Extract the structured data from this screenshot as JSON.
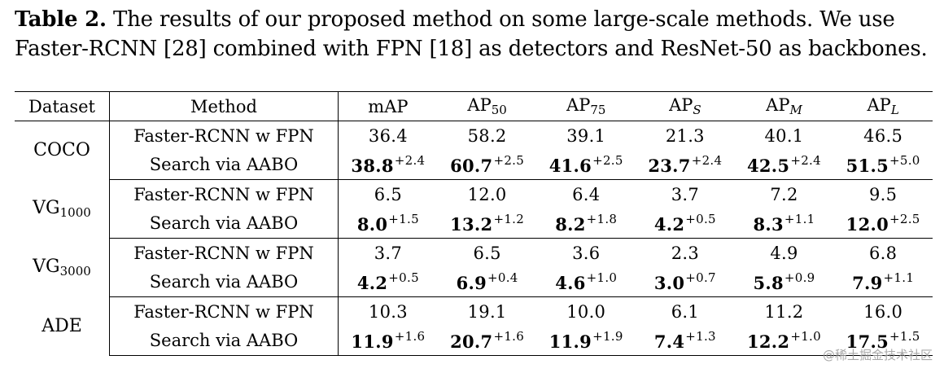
{
  "caption": {
    "label": "Table 2.",
    "line1": "The results of our proposed method on some large-scale methods. We use",
    "line2": "Faster-RCNN [28] combined with FPN [18] as detectors and ResNet-50 as backbones."
  },
  "table": {
    "headers": {
      "dataset": "Dataset",
      "method": "Method",
      "map": "mAP",
      "ap_prefix": "AP",
      "ap50_sub": "50",
      "ap75_sub": "75",
      "aps_sub": "S",
      "apm_sub": "M",
      "apl_sub": "L"
    },
    "groups": [
      {
        "dataset": "COCO",
        "dataset_sub": "",
        "baseline": {
          "method": "Faster-RCNN w FPN",
          "values": [
            "36.4",
            "58.2",
            "39.1",
            "21.3",
            "40.1",
            "46.5"
          ]
        },
        "ours": {
          "method": "Search via AABO",
          "values": [
            "38.8",
            "60.7",
            "41.6",
            "23.7",
            "42.5",
            "51.5"
          ],
          "gains": [
            "+2.4",
            "+2.5",
            "+2.5",
            "+2.4",
            "+2.4",
            "+5.0"
          ]
        }
      },
      {
        "dataset": "VG",
        "dataset_sub": "1000",
        "baseline": {
          "method": "Faster-RCNN w FPN",
          "values": [
            "6.5",
            "12.0",
            "6.4",
            "3.7",
            "7.2",
            "9.5"
          ]
        },
        "ours": {
          "method": "Search via AABO",
          "values": [
            "8.0",
            "13.2",
            "8.2",
            "4.2",
            "8.3",
            "12.0"
          ],
          "gains": [
            "+1.5",
            "+1.2",
            "+1.8",
            "+0.5",
            "+1.1",
            "+2.5"
          ]
        }
      },
      {
        "dataset": "VG",
        "dataset_sub": "3000",
        "baseline": {
          "method": "Faster-RCNN w FPN",
          "values": [
            "3.7",
            "6.5",
            "3.6",
            "2.3",
            "4.9",
            "6.8"
          ]
        },
        "ours": {
          "method": "Search via AABO",
          "values": [
            "4.2",
            "6.9",
            "4.6",
            "3.0",
            "5.8",
            "7.9"
          ],
          "gains": [
            "+0.5",
            "+0.4",
            "+1.0",
            "+0.7",
            "+0.9",
            "+1.1"
          ]
        }
      },
      {
        "dataset": "ADE",
        "dataset_sub": "",
        "baseline": {
          "method": "Faster-RCNN w FPN",
          "values": [
            "10.3",
            "19.1",
            "10.0",
            "6.1",
            "11.2",
            "16.0"
          ]
        },
        "ours": {
          "method": "Search via AABO",
          "values": [
            "11.9",
            "20.7",
            "11.9",
            "7.4",
            "12.2",
            "17.5"
          ],
          "gains": [
            "+1.6",
            "+1.6",
            "+1.9",
            "+1.3",
            "+1.0",
            "+1.5"
          ]
        }
      }
    ]
  },
  "watermark": "@稀土掘金技术社区"
}
